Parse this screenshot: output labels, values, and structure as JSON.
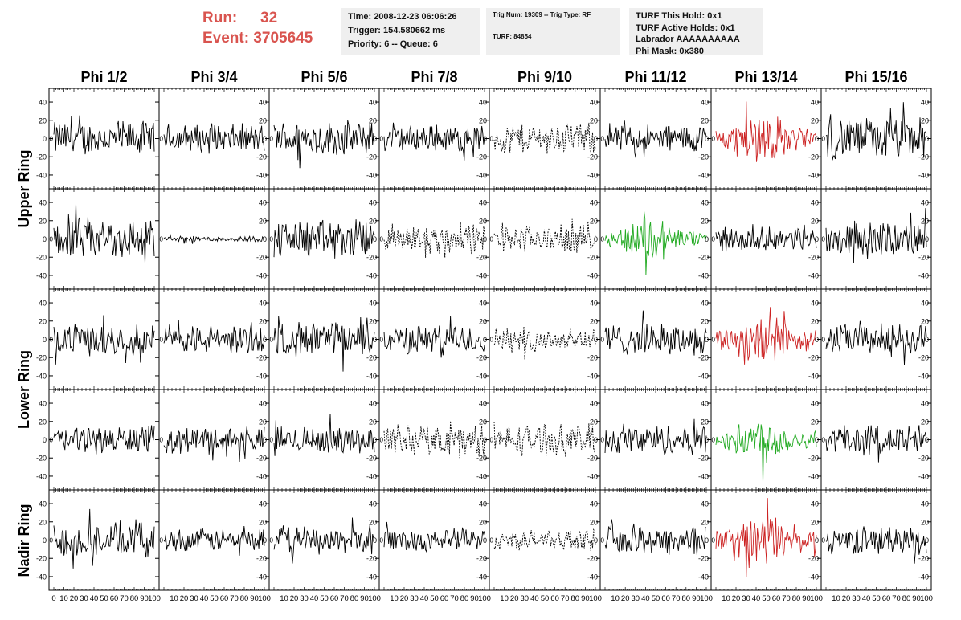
{
  "run": {
    "run_label": "Run:",
    "run_value": "32",
    "event_label": "Event:",
    "event_value": "3705645"
  },
  "info_boxes": {
    "time_box": [
      "Time: 2008-12-23 06:06:26",
      "Trigger: 154.580662 ms",
      "Priority: 6 -- Queue: 6"
    ],
    "trig_box": [
      "Trig Num: 19309 -- Trig Type: RF",
      "TURF: 84854"
    ],
    "turf_box": [
      "TURF This Hold: 0x1",
      "TURF Active Holds: 0x1",
      "Labrador AAAAAAAAAA",
      "Phi Mask: 0x380"
    ]
  },
  "columns": [
    "Phi 1/2",
    "Phi 3/4",
    "Phi 5/6",
    "Phi 7/8",
    "Phi 9/10",
    "Phi 11/12",
    "Phi 13/14",
    "Phi 15/16"
  ],
  "rings": [
    {
      "label": "Upper Ring",
      "rows": [
        0,
        1
      ]
    },
    {
      "label": "Lower Ring",
      "rows": [
        2,
        3
      ]
    },
    {
      "label": "Nadir Ring",
      "rows": [
        4
      ]
    }
  ],
  "colors": {
    "red": "#cc2222",
    "green": "#22aa22",
    "black": "#000000",
    "run_text": "#d9544f",
    "box_bg": "#efefef"
  },
  "chart_data": {
    "type": "line",
    "description_axes": "grid of 5 x 8 waveform panels, shared axes",
    "xlim": [
      0,
      100
    ],
    "ylim": [
      -55,
      55
    ],
    "x_tick_labels": [
      "0",
      "10",
      "20",
      "30",
      "40",
      "50",
      "60",
      "70",
      "80",
      "90",
      "100"
    ],
    "y_tick_labels": [
      "40",
      "20",
      "0",
      "-20",
      "-40"
    ],
    "y_tick_values": [
      40,
      20,
      0,
      -20,
      -40
    ],
    "panel_style": [
      [
        "solid",
        "solid",
        "solid",
        "solid",
        "dashed",
        "solid",
        "red",
        "solid"
      ],
      [
        "solid",
        "solid",
        "solid",
        "dashed",
        "dashed",
        "green",
        "solid",
        "solid"
      ],
      [
        "solid",
        "solid",
        "solid",
        "solid",
        "dashed",
        "solid",
        "red",
        "solid"
      ],
      [
        "solid",
        "solid",
        "solid",
        "dashed",
        "dashed",
        "solid",
        "green",
        "solid"
      ],
      [
        "solid",
        "solid",
        "solid",
        "solid",
        "dashed",
        "solid",
        "red",
        "solid"
      ]
    ],
    "panel_amplitude": [
      [
        18,
        15,
        18,
        14,
        16,
        15,
        24,
        22
      ],
      [
        22,
        3,
        20,
        16,
        14,
        20,
        12,
        18
      ],
      [
        16,
        15,
        18,
        15,
        13,
        16,
        26,
        16
      ],
      [
        14,
        14,
        14,
        16,
        16,
        16,
        20,
        16
      ],
      [
        18,
        12,
        14,
        12,
        10,
        16,
        24,
        14
      ]
    ]
  }
}
